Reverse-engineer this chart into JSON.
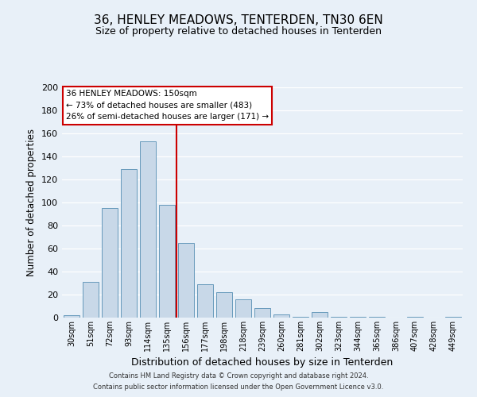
{
  "title": "36, HENLEY MEADOWS, TENTERDEN, TN30 6EN",
  "subtitle": "Size of property relative to detached houses in Tenterden",
  "xlabel": "Distribution of detached houses by size in Tenterden",
  "ylabel": "Number of detached properties",
  "bar_color": "#c8d8e8",
  "bar_edge_color": "#6699bb",
  "background_color": "#e8f0f8",
  "grid_color": "#ffffff",
  "categories": [
    "30sqm",
    "51sqm",
    "72sqm",
    "93sqm",
    "114sqm",
    "135sqm",
    "156sqm",
    "177sqm",
    "198sqm",
    "218sqm",
    "239sqm",
    "260sqm",
    "281sqm",
    "302sqm",
    "323sqm",
    "344sqm",
    "365sqm",
    "386sqm",
    "407sqm",
    "428sqm",
    "449sqm"
  ],
  "values": [
    2,
    31,
    95,
    129,
    153,
    98,
    65,
    29,
    22,
    16,
    8,
    3,
    1,
    5,
    1,
    1,
    1,
    0,
    1,
    0,
    1
  ],
  "ylim": [
    0,
    200
  ],
  "yticks": [
    0,
    20,
    40,
    60,
    80,
    100,
    120,
    140,
    160,
    180,
    200
  ],
  "vline_x": 5.5,
  "vline_color": "#cc0000",
  "annotation_title": "36 HENLEY MEADOWS: 150sqm",
  "annotation_line1": "← 73% of detached houses are smaller (483)",
  "annotation_line2": "26% of semi-detached houses are larger (171) →",
  "annotation_box_color": "#ffffff",
  "annotation_box_edge_color": "#cc0000",
  "footer_line1": "Contains HM Land Registry data © Crown copyright and database right 2024.",
  "footer_line2": "Contains public sector information licensed under the Open Government Licence v3.0."
}
